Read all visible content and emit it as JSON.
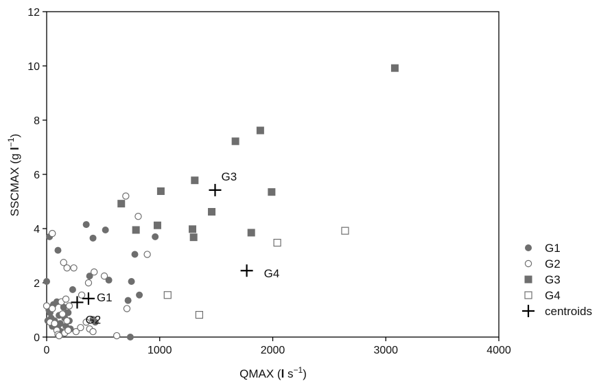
{
  "chart_data": {
    "type": "scatter",
    "title": "",
    "xlabel": "QMAX (",
    "xlabel_unit_l": "l",
    "xlabel_unit_s": " s",
    "xlabel_exp": "−1",
    "xlabel_close": ")",
    "ylabel": "SSCMAX (g ",
    "ylabel_unit_l": "l",
    "ylabel_exp": "−1",
    "ylabel_close": ")",
    "xlim": [
      0,
      4000
    ],
    "ylim": [
      0,
      12
    ],
    "xticks": [
      "0",
      "1000",
      "2000",
      "3000",
      "4000"
    ],
    "yticks": [
      "0",
      "2",
      "4",
      "6",
      "8",
      "10",
      "12"
    ],
    "grid": false,
    "legend_position": "right",
    "series": [
      {
        "name": "G1",
        "marker": "filled-circle",
        "color": "#6e6e6e",
        "points": [
          [
            10,
            0.6
          ],
          [
            20,
            1.0
          ],
          [
            30,
            0.9
          ],
          [
            40,
            0.7
          ],
          [
            50,
            0.4
          ],
          [
            60,
            1.2
          ],
          [
            70,
            0.6
          ],
          [
            80,
            0.5
          ],
          [
            90,
            1.3
          ],
          [
            100,
            0.3
          ],
          [
            110,
            0.8
          ],
          [
            120,
            0.5
          ],
          [
            130,
            0.2
          ],
          [
            150,
            1.1
          ],
          [
            160,
            0.7
          ],
          [
            170,
            0.4
          ],
          [
            180,
            0.9
          ],
          [
            200,
            0.6
          ],
          [
            210,
            0.3
          ],
          [
            190,
            0.9
          ],
          [
            0,
            2.05
          ],
          [
            25,
            3.7
          ],
          [
            100,
            3.2
          ],
          [
            230,
            1.75
          ],
          [
            350,
            4.15
          ],
          [
            370,
            2.0
          ],
          [
            380,
            2.25
          ],
          [
            410,
            3.65
          ],
          [
            550,
            2.1
          ],
          [
            520,
            3.95
          ],
          [
            720,
            1.35
          ],
          [
            740,
            0.0
          ],
          [
            750,
            2.05
          ],
          [
            780,
            3.05
          ],
          [
            820,
            1.55
          ],
          [
            960,
            3.7
          ],
          [
            430,
            0.55
          ],
          [
            410,
            0.65
          ]
        ]
      },
      {
        "name": "G2",
        "marker": "open-circle",
        "color": "#6e6e6e",
        "points": [
          [
            0,
            1.15
          ],
          [
            30,
            0.55
          ],
          [
            50,
            3.82
          ],
          [
            50,
            1.05
          ],
          [
            70,
            0.5
          ],
          [
            90,
            0.25
          ],
          [
            100,
            0.1
          ],
          [
            110,
            0.05
          ],
          [
            130,
            1.3
          ],
          [
            140,
            0.85
          ],
          [
            160,
            0.15
          ],
          [
            170,
            1.4
          ],
          [
            180,
            0.6
          ],
          [
            190,
            0.25
          ],
          [
            200,
            1.15
          ],
          [
            150,
            2.75
          ],
          [
            180,
            2.55
          ],
          [
            240,
            2.55
          ],
          [
            260,
            0.2
          ],
          [
            300,
            0.35
          ],
          [
            310,
            1.55
          ],
          [
            350,
            0.55
          ],
          [
            370,
            2.0
          ],
          [
            380,
            0.3
          ],
          [
            410,
            0.2
          ],
          [
            420,
            2.4
          ],
          [
            510,
            2.25
          ],
          [
            620,
            0.05
          ],
          [
            710,
            1.05
          ],
          [
            700,
            5.2
          ],
          [
            810,
            4.45
          ],
          [
            890,
            3.05
          ]
        ]
      },
      {
        "name": "G3",
        "marker": "filled-square",
        "color": "#6e6e6e",
        "points": [
          [
            660,
            4.92
          ],
          [
            790,
            3.95
          ],
          [
            980,
            4.12
          ],
          [
            1010,
            5.38
          ],
          [
            1290,
            3.98
          ],
          [
            1300,
            3.68
          ],
          [
            1310,
            5.78
          ],
          [
            1460,
            4.62
          ],
          [
            1670,
            7.22
          ],
          [
            1810,
            3.85
          ],
          [
            1890,
            7.62
          ],
          [
            1990,
            5.35
          ],
          [
            3080,
            9.92
          ]
        ]
      },
      {
        "name": "G4",
        "marker": "open-square",
        "color": "#6e6e6e",
        "points": [
          [
            1070,
            1.55
          ],
          [
            1350,
            0.82
          ],
          [
            2040,
            3.48
          ],
          [
            2640,
            3.92
          ]
        ]
      },
      {
        "name": "centroids",
        "marker": "plus",
        "color": "#000000",
        "points": [
          [
            270,
            1.28
          ],
          [
            370,
            1.42
          ],
          [
            1490,
            5.42
          ],
          [
            1770,
            2.45
          ]
        ],
        "labels": [
          "G2",
          "G1",
          "G3",
          "G4"
        ]
      }
    ]
  }
}
